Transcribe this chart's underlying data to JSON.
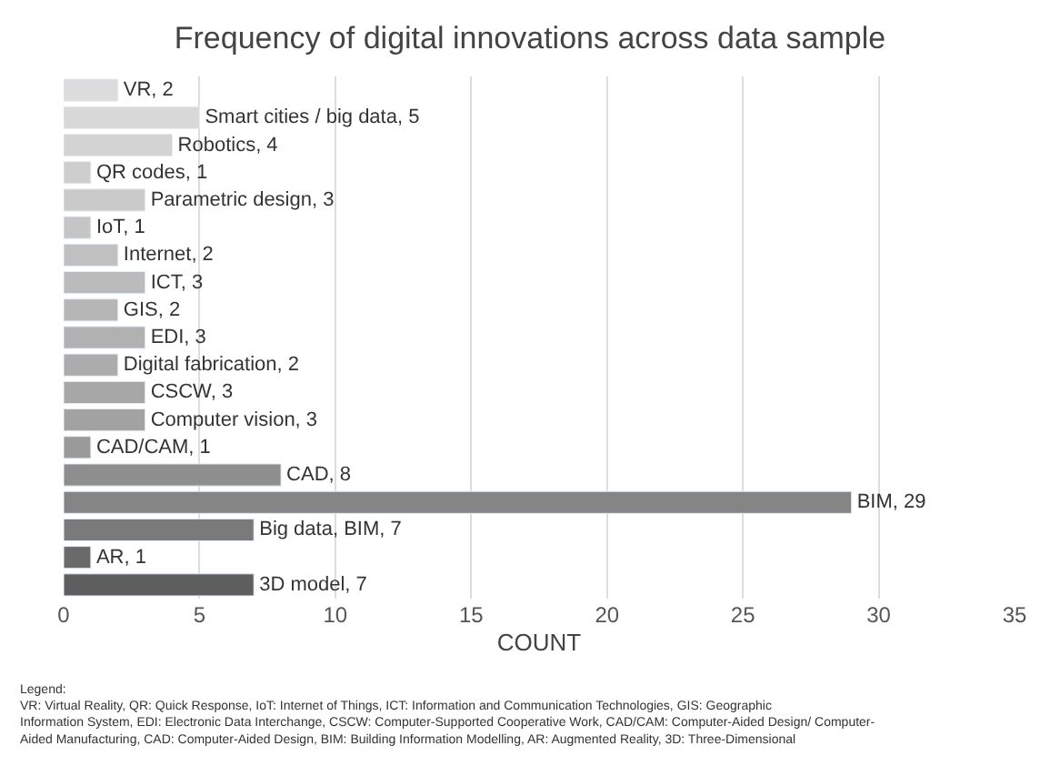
{
  "chart_data": {
    "type": "bar",
    "orientation": "horizontal",
    "title": "Frequency of digital innovations across data sample",
    "xlabel": "COUNT",
    "categories": [
      null,
      null,
      null,
      null,
      null,
      null,
      null,
      null,
      null,
      null,
      null,
      null,
      null,
      null,
      null,
      null,
      null,
      null,
      null
    ],
    "values": [
      2,
      5,
      4,
      1,
      3,
      1,
      2,
      3,
      2,
      3,
      2,
      3,
      3,
      1,
      8,
      29,
      7,
      1,
      7
    ],
    "value_labels": [
      "VR, 2",
      "Smart cities / big data, 5",
      "Robotics, 4",
      "QR codes, 1",
      "Parametric design, 3",
      "IoT, 1",
      "Internet, 2",
      "ICT, 3",
      "GIS, 2",
      "EDI, 3",
      "Digital fabrication, 2",
      "CSCW, 3",
      "Computer vision, 3",
      "CAD/CAM, 1",
      "CAD, 8",
      "BIM, 29",
      "Big data, BIM, 7",
      "AR, 1",
      "3D model, 7"
    ],
    "colors": [
      "#dcdcdc",
      "#d8d8d8",
      "#d3d3d3",
      "#cecece",
      "#cacaca",
      "#c5c5c5",
      "#c0c0c0",
      "#bbbbbb",
      "#b6b6b6",
      "#b1b1b1",
      "#acacac",
      "#a7a7a7",
      "#a2a2a2",
      "#9a9a9a",
      "#8e8e8e",
      "#858585",
      "#7a7a7a",
      "#6a6a6a",
      "#5e5e5e"
    ],
    "xlim": [
      0,
      35
    ],
    "xticks": [
      0,
      5,
      10,
      15,
      20,
      25,
      30,
      35
    ],
    "grid": "x",
    "tick_labels": "x",
    "annotations": [
      "Legend:\nVR: Virtual Reality, QR: Quick Response, IoT: Internet of Things, ICT: Information and Communication Technologies, GIS: Geographic Information System, EDI: Electronic Data Interchange, CSCW: Computer-Supported Cooperative Work, CAD/CAM: Computer-Aided Design/ Computer-Aided Manufacturing, CAD: Computer-Aided Design, BIM: Building Information Modelling, AR: Augmented Reality, 3D: Three-Dimensional"
    ]
  }
}
